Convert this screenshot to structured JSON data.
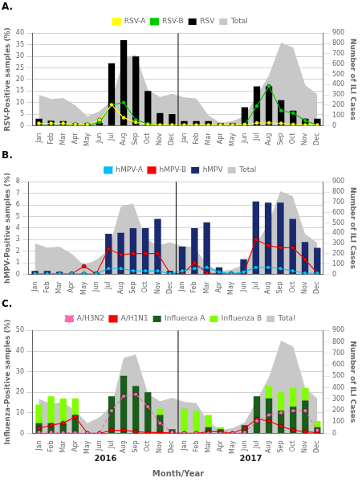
{
  "chart_data": [
    {
      "type": "bar",
      "title": "A.",
      "categories": [
        "Jan",
        "Feb",
        "Mar",
        "Apr",
        "May",
        "Jun",
        "Jul",
        "Aug",
        "Sep",
        "Oct",
        "Nov",
        "Dec",
        "Jan",
        "Feb",
        "Mar",
        "Apr",
        "May",
        "Jun",
        "Jul",
        "Aug",
        "Sep",
        "Oct",
        "Nov",
        "Dec"
      ],
      "ylabel": "RSV-Positive samples (%)",
      "y2label": "Number of ILI Cases",
      "ylim": [
        0,
        40
      ],
      "yticks": [
        0,
        5,
        10,
        15,
        20,
        25,
        30,
        35,
        40
      ],
      "y2lim": [
        0,
        900
      ],
      "y2ticks": [
        0,
        100,
        200,
        300,
        400,
        500,
        600,
        700,
        800,
        900
      ],
      "grid": true,
      "legend": "top",
      "series": [
        {
          "name": "Total",
          "type": "area",
          "axis": "y2",
          "color": "#c8c8c8",
          "values": [
            300,
            260,
            270,
            200,
            90,
            140,
            240,
            660,
            690,
            350,
            280,
            310,
            275,
            265,
            100,
            30,
            45,
            95,
            290,
            490,
            810,
            760,
            395,
            305
          ]
        },
        {
          "name": "RSV",
          "type": "bar",
          "color": "#000000",
          "values": [
            3.0,
            2.2,
            2.0,
            1.0,
            1.0,
            1.2,
            27.0,
            37.0,
            30.0,
            15.0,
            5.5,
            5.0,
            2.0,
            2.0,
            2.0,
            1.0,
            1.0,
            8.0,
            17.0,
            17.0,
            11.0,
            6.5,
            3.0,
            3.0
          ]
        },
        {
          "name": "RSV-A",
          "type": "line",
          "color": "#ffff00",
          "marker": "circle",
          "line_style": "solid",
          "values": [
            1.0,
            1.0,
            1.0,
            0.5,
            0.5,
            2.5,
            9.0,
            3.5,
            1.5,
            0.5,
            0.3,
            0.3,
            0.3,
            0.3,
            0.3,
            0.3,
            0.3,
            0.5,
            1.2,
            1.2,
            1.0,
            0.5,
            0.3,
            0.3
          ]
        },
        {
          "name": "RSV-B",
          "type": "line",
          "color": "#00cc00",
          "marker": "circle",
          "line_style": "solid",
          "values": [
            0.2,
            0.1,
            0.1,
            0.1,
            0.1,
            1.5,
            9.0,
            10.0,
            2.5,
            0.8,
            0.2,
            0.1,
            0.2,
            0.1,
            0.1,
            0.1,
            0.1,
            0.3,
            8.5,
            17.0,
            6.5,
            5.5,
            2.2,
            0.2
          ]
        }
      ]
    },
    {
      "type": "bar",
      "title": "B.",
      "categories": [
        "Jan",
        "Feb",
        "Mar",
        "Apr",
        "May",
        "Jun",
        "Jul",
        "Aug",
        "Sep",
        "Oct",
        "Nov",
        "Dec",
        "Jan",
        "Feb",
        "Mar",
        "Apr",
        "May",
        "Jun",
        "Jul",
        "Aug",
        "Sep",
        "Oct",
        "Nov",
        "Dec"
      ],
      "ylabel": "hMPV-Positive samples (%)",
      "y2label": "Number of ILI Cases",
      "ylim": [
        0,
        8
      ],
      "yticks": [
        0,
        1,
        2,
        3,
        4,
        5,
        6,
        7,
        8
      ],
      "y2lim": [
        0,
        900
      ],
      "y2ticks": [
        0,
        100,
        200,
        300,
        400,
        500,
        600,
        700,
        800,
        900
      ],
      "grid": true,
      "legend": "top",
      "series": [
        {
          "name": "Total",
          "type": "area",
          "axis": "y2",
          "color": "#c8c8c8",
          "values": [
            300,
            260,
            270,
            200,
            90,
            140,
            240,
            660,
            690,
            350,
            280,
            310,
            275,
            265,
            100,
            30,
            45,
            95,
            290,
            490,
            810,
            760,
            395,
            305
          ]
        },
        {
          "name": "hMPV",
          "type": "bar",
          "color": "#1a2a6e",
          "values": [
            0.3,
            0.3,
            0.2,
            0.1,
            0.1,
            0.15,
            3.5,
            3.6,
            4.0,
            4.0,
            4.8,
            0.3,
            2.4,
            4.0,
            4.5,
            0.6,
            0.1,
            1.3,
            6.3,
            6.2,
            6.2,
            4.8,
            2.8,
            2.3
          ]
        },
        {
          "name": "hMPV-A",
          "type": "line",
          "color": "#00bfff",
          "marker": "circle",
          "line_style": "solid",
          "values": [
            0.05,
            0.05,
            0.05,
            0.05,
            0.05,
            0.05,
            0.5,
            0.5,
            0.3,
            0.3,
            0.3,
            0.05,
            0.3,
            0.5,
            0.6,
            0.2,
            0.05,
            0.2,
            0.6,
            0.6,
            0.5,
            0.3,
            0.1,
            0.1
          ]
        },
        {
          "name": "hMPV-B",
          "type": "line",
          "color": "#ff0000",
          "marker": "circle",
          "line_style": "solid",
          "values": [
            0.05,
            0.05,
            0.05,
            0.05,
            0.7,
            0.05,
            2.2,
            1.7,
            1.8,
            1.8,
            1.8,
            0.1,
            0.05,
            1.0,
            0.1,
            0.05,
            0.05,
            0.05,
            3.0,
            2.5,
            2.3,
            2.3,
            1.3,
            0.1
          ]
        }
      ]
    },
    {
      "type": "bar",
      "title": "C.",
      "categories": [
        "Jan",
        "Feb",
        "Mar",
        "Apr",
        "May",
        "Jun",
        "Jul",
        "Aug",
        "Sep",
        "Oct",
        "Nov",
        "Dec",
        "Jan",
        "Feb",
        "Mar",
        "Apr",
        "May",
        "Jun",
        "Jul",
        "Aug",
        "Sep",
        "Oct",
        "Nov",
        "Dec"
      ],
      "xlabel": "Month/Year",
      "annotations": [
        "2016",
        "2017"
      ],
      "ylabel": "Influenza-Positive samples (%)",
      "y2label": "Number of ILI Cases",
      "ylim": [
        0,
        50
      ],
      "yticks": [
        0,
        10,
        20,
        30,
        40,
        50
      ],
      "y2lim": [
        0,
        900
      ],
      "y2ticks": [
        0,
        100,
        200,
        300,
        400,
        500,
        600,
        700,
        800,
        900
      ],
      "grid": true,
      "legend": "top",
      "stacked": true,
      "series": [
        {
          "name": "Total",
          "type": "area",
          "axis": "y2",
          "color": "#c8c8c8",
          "values": [
            300,
            260,
            270,
            200,
            90,
            140,
            240,
            660,
            690,
            350,
            280,
            310,
            275,
            265,
            100,
            30,
            45,
            95,
            290,
            490,
            810,
            760,
            395,
            305
          ]
        },
        {
          "name": "Influenza A",
          "type": "bar",
          "color": "#1a5c1a",
          "values": [
            5,
            5,
            5,
            9,
            0,
            0,
            18,
            28,
            23,
            20,
            9,
            2,
            0,
            0,
            3,
            2,
            0,
            4,
            18,
            17,
            11,
            13,
            16,
            3
          ]
        },
        {
          "name": "Influenza B",
          "type": "bar",
          "color": "#7fff00",
          "values": [
            9,
            13,
            12,
            8,
            0,
            0,
            0,
            0,
            0,
            0,
            3,
            0,
            12,
            11,
            6,
            1,
            0,
            0,
            0,
            6,
            9,
            9,
            6,
            3
          ]
        },
        {
          "name": "A/H3N2",
          "type": "line",
          "color": "#ff69b4",
          "marker": "circle",
          "line_style": "dashed",
          "values": [
            0.5,
            0.5,
            0.3,
            0.3,
            0,
            0,
            11,
            18,
            19,
            13,
            5,
            0.5,
            0,
            0,
            0,
            0,
            0,
            0.5,
            6,
            9,
            10,
            11,
            11,
            1.5
          ]
        },
        {
          "name": "A/H1N1",
          "type": "line",
          "color": "#ff0000",
          "marker": "circle",
          "line_style": "solid",
          "values": [
            2.5,
            4,
            5,
            8,
            0,
            0,
            1.5,
            1.5,
            0.8,
            0.4,
            0.4,
            0.2,
            0,
            0,
            0.8,
            0.8,
            0,
            2.5,
            7,
            6,
            3.5,
            1.5,
            0.8,
            0.3
          ]
        }
      ]
    }
  ]
}
